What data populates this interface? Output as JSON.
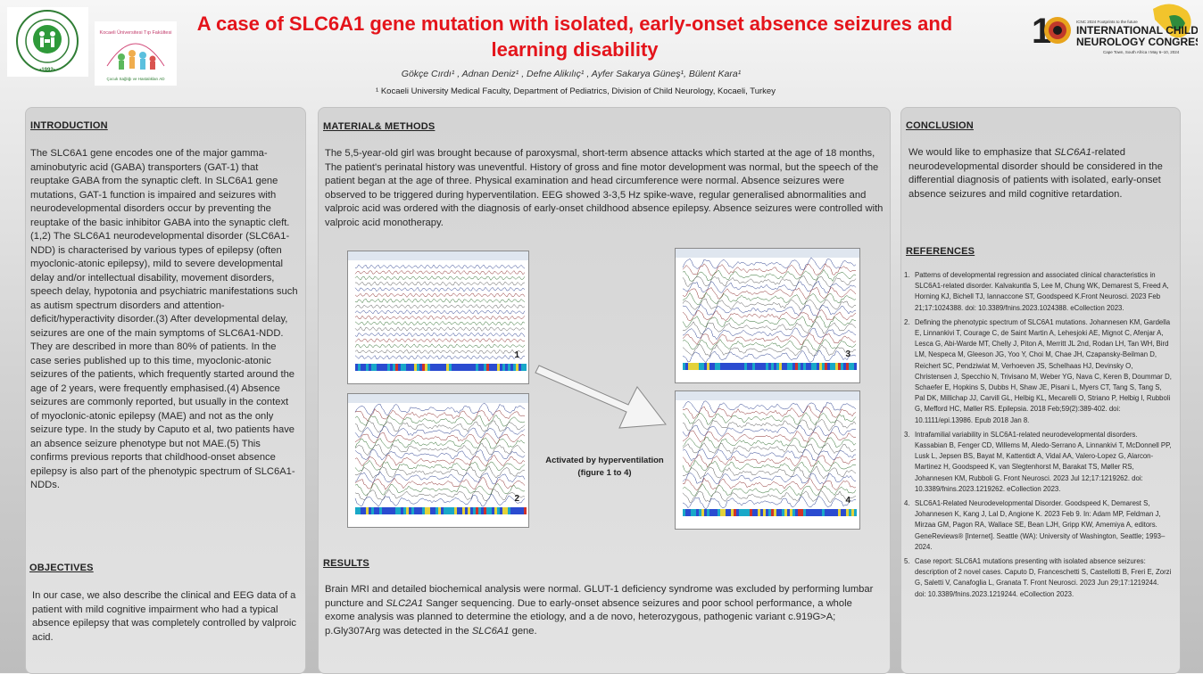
{
  "header": {
    "title": "A case of SLC6A1 gene mutation with isolated, early-onset absence seizures and learning disability",
    "authors": "Gökçe Cırdı¹ , Adnan Deniz¹ , Defne Alikılıç¹ , Ayfer Sakarya Güneş¹, Bülent Kara¹",
    "affiliation": "¹ Kocaeli University Medical Faculty, Department of Pediatrics, Division of Child Neurology, Kocaeli, Turkey",
    "logo_left_text": "KOCAELİ ÜNİVERSİTESİ",
    "logo_left_year": "1992",
    "logo_mid_text": "Kocaeli Üniversitesi Tıp Fakültesi Çocuk Sağlığı ve Hastalıkları Anabilim Dalı",
    "congress_small": "ICNC 2024  Footprints to the future",
    "congress_name_1": "INTERNATIONAL CHILD",
    "congress_name_2": "NEUROLOGY CONGRESS",
    "congress_place": "Cape Town, South Africa I May 6–10, 2024",
    "congress_number": "18"
  },
  "introduction": {
    "heading": "INTRODUCTION",
    "text": "The SLC6A1 gene encodes one of the major gamma-aminobutyric acid (GABA) transporters (GAT-1) that reuptake GABA from the synaptic cleft. In SLC6A1 gene mutations, GAT-1 function is impaired and seizures with neurodevelopmental disorders occur by preventing the reuptake of the basic inhibitor GABA into the synaptic cleft. (1,2) The SLC6A1 neurodevelopmental disorder (SLC6A1-NDD) is characterised by various types of epilepsy (often myoclonic-atonic epilepsy), mild to severe developmental delay and/or intellectual disability, movement disorders, speech delay, hypotonia and psychiatric manifestations such as autism spectrum disorders and attention-deficit/hyperactivity disorder.(3) After developmental delay, seizures are one of the main symptoms of SLC6A1-NDD. They are described in more than 80% of patients. In the case series published up to this time, myoclonic-atonic seizures of the patients, which frequently started around the age of 2 years, were frequently emphasised.(4) Absence seizures are commonly reported, but usually in the context of myoclonic-atonic epilepsy (MAE) and not as the only seizure type. In the study by Caputo et al, two patients have an absence seizure phenotype but not MAE.(5) This confirms previous reports that childhood-onset absence epilepsy is also part of the phenotypic spectrum of SLC6A1-NDDs."
  },
  "objectives": {
    "heading": "OBJECTIVES",
    "text": "In our case, we also describe the clinical and EEG data of a patient with mild cognitive impairment who had a typical absence epilepsy that was completely controlled by valproic acid."
  },
  "methods": {
    "heading": "MATERIAL& METHODS",
    "text": "The 5,5-year-old girl was brought because of paroxysmal, short-term absence attacks which started at the age of 18 months, The patient's perinatal history was uneventful. History of gross and fine motor development was normal, but the speech of the patient began at the age of three. Physical examination and head circumference were normal. Absence seizures were observed to be triggered during hyperventilation. EEG showed 3-3,5 Hz spike-wave, regular generalised abnormalities and valproic acid was ordered with the diagnosis of early-onset childhood absence epilepsy. Absence seizures were controlled with valproic acid monotherapy."
  },
  "figures": {
    "caption_line1": "Activated by hyperventilation",
    "caption_line2": "(figure 1 to 4)",
    "labels": [
      "1",
      "2",
      "3",
      "4"
    ]
  },
  "results": {
    "heading": "RESULTS",
    "text_part1": "Brain MRI and detailed biochemical analysis were normal. GLUT-1 deficiency syndrome was excluded by performing lumbar puncture and ",
    "text_italic1": "SLC2A1",
    "text_part2": " Sanger sequencing. Due to early-onset absence seizures and poor school performance, a whole exome analysis was planned to determine the etiology, and a de novo, heterozygous, pathogenic variant  c.919G>A; p.Gly307Arg was detected in the ",
    "text_italic2": "SLC6A1",
    "text_part3": " gene."
  },
  "conclusion": {
    "heading": "CONCLUSION",
    "text_part1": "We would like to emphasize that ",
    "text_italic": "SLC6A1",
    "text_part2": "-related neurodevelopmental disorder should be considered in the differential diagnosis of patients with isolated, early-onset absence seizures and mild cognitive retardation."
  },
  "references": {
    "heading": "REFERENCES",
    "items": [
      "Patterns of developmental regression and associated clinical characteristics in SLC6A1-related disorder. Kalvakuntla S, Lee M, Chung WK, Demarest S, Freed A, Horning KJ, Bichell TJ, Iannaccone ST, Goodspeed K.Front Neurosci. 2023 Feb 21;17:1024388. doi: 10.3389/fnins.2023.1024388. eCollection 2023.",
      "Defining the phenotypic spectrum of SLC6A1 mutations. Johannesen KM, Gardella E, Linnankivi T, Courage C, de Saint Martin A, Lehesjoki AE, Mignot C, Afenjar A, Lesca G, Abi-Warde MT, Chelly J, Piton A, Merritt JL 2nd, Rodan LH, Tan WH, Bird LM, Nespeca M, Gleeson JG, Yoo Y, Choi M, Chae JH, Czapansky-Beilman D, Reichert SC, Pendziwiat M, Verhoeven JS, Schelhaas HJ, Devinsky O, Christensen J, Specchio N, Trivisano M, Weber YG, Nava C, Keren B, Doummar D, Schaefer E, Hopkins S, Dubbs H, Shaw JE, Pisani L, Myers CT, Tang S, Tang S, Pal DK, Millichap JJ, Carvill GL, Helbig KL, Mecarelli O, Striano P, Helbig I, Rubboli G, Mefford HC, Møller RS. Epilepsia. 2018 Feb;59(2):389-402. doi: 10.1111/epi.13986. Epub 2018 Jan 8.",
      "Intrafamilial variability in SLC6A1-related neurodevelopmental disorders. Kassabian B, Fenger CD, Willems M, Aledo-Serrano A, Linnankivi T, McDonnell PP, Lusk L, Jepsen BS, Bayat M, Kattentidt A, Vidal AA, Valero-Lopez G, Alarcon-Martinez H, Goodspeed K, van Slegtenhorst M, Barakat TS, Møller RS, Johannesen KM, Rubboli G. Front Neurosci. 2023 Jul 12;17:1219262. doi: 10.3389/fnins.2023.1219262. eCollection 2023.",
      "SLC6A1-Related Neurodevelopmental Disorder. Goodspeed K, Demarest S, Johannesen K, Kang J, Lal D, Angione K. 2023 Feb 9. In: Adam MP, Feldman J, Mirzaa GM, Pagon RA, Wallace SE, Bean LJH, Gripp KW, Amemiya A, editors. GeneReviews® [Internet]. Seattle (WA): University of Washington, Seattle; 1993–2024.",
      "Case report: SLC6A1 mutations presenting with isolated absence seizures: description of 2 novel cases. Caputo D, Franceschetti S, Castellotti B, Freri E, Zorzi G, Saletti V, Canafoglia L, Granata T. Front Neurosci. 2023 Jun 29;17:1219244. doi: 10.3389/fnins.2023.1219244. eCollection 2023."
    ]
  }
}
